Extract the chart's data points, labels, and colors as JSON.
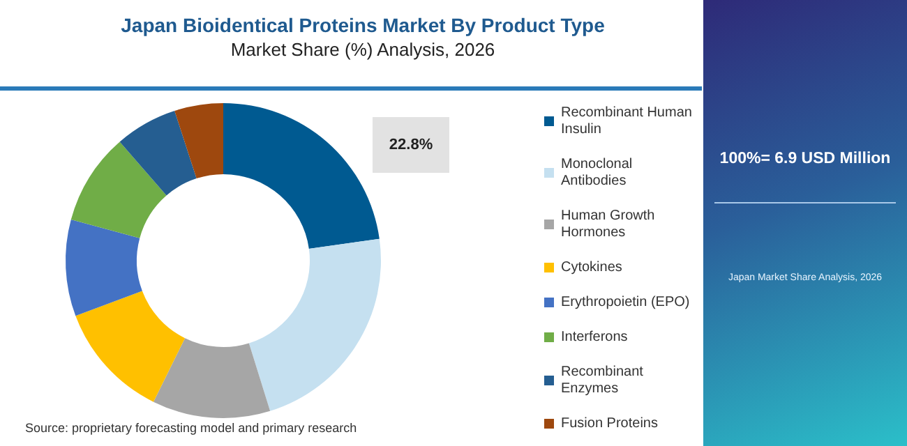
{
  "chart_data": {
    "type": "donut",
    "title": "Japan Bioidentical Proteins Market By Product Type",
    "subtitle": "Market Share (%) Analysis, 2026",
    "categories": [
      "Recombinant Human Insulin",
      "Monoclonal Antibodies",
      "Human Growth Hormones",
      "Cytokines",
      "Erythropoietin (EPO)",
      "Interferons",
      "Recombinant Enzymes",
      "Fusion Proteins"
    ],
    "values": [
      22.8,
      22.4,
      12.1,
      12.0,
      9.9,
      9.4,
      6.4,
      5.0
    ],
    "colors": [
      "#005a91",
      "#c5e0f0",
      "#a6a6a6",
      "#ffc000",
      "#4472c4",
      "#70ad47",
      "#255e91",
      "#9e480e"
    ],
    "value_labels": [
      "22.8%",
      null,
      null,
      null,
      null,
      null,
      null,
      null
    ],
    "legend": "right",
    "annotations": [
      "100%= 6.9 USD Million",
      "Japan Market Share Analysis, 2026",
      "Source: proprietary forecasting model and primary research"
    ]
  }
}
